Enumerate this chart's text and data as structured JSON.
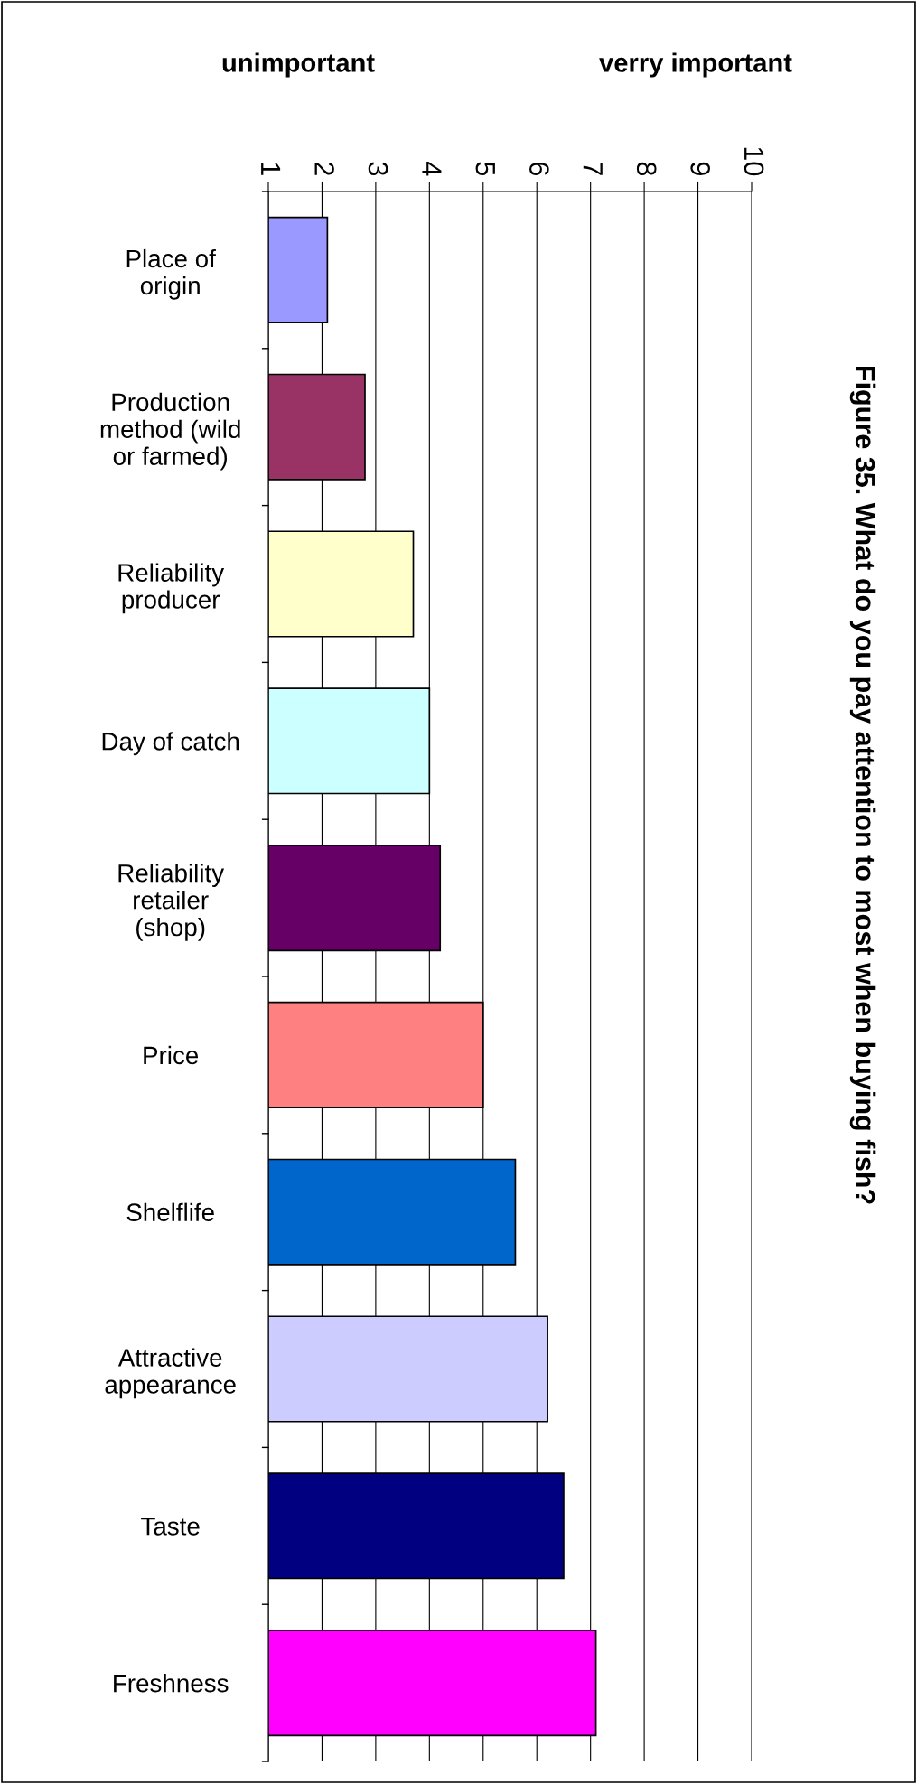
{
  "chart_data": {
    "type": "bar",
    "orientation": "horizontal",
    "title": "Figure 35. What do you pay attention to most when buying fish?",
    "annotations": [
      "unimportant",
      "verry important"
    ],
    "categories": [
      "Place of\norigin",
      "Production\nmethod (wild\nor farmed)",
      "Reliability\nproducer",
      "Day of catch",
      "Reliability\nretailer\n(shop)",
      "Price",
      "Shelflife",
      "Attractive\nappearance",
      "Taste",
      "Freshness"
    ],
    "values": [
      1.1,
      1.8,
      2.7,
      3.0,
      3.2,
      4.0,
      4.6,
      5.2,
      5.5,
      6.1
    ],
    "base": [
      1,
      1,
      1,
      1,
      1,
      1,
      1,
      1,
      1,
      1
    ],
    "colors": [
      "#9999ff",
      "#993366",
      "#ffffcc",
      "#ccffff",
      "#660066",
      "#ff8080",
      "#0066cc",
      "#ccccff",
      "#000080",
      "#ff00ff"
    ],
    "xlim": [
      1,
      10
    ],
    "xticks": [
      1,
      2,
      3,
      4,
      5,
      6,
      7,
      8,
      9,
      10
    ],
    "grid": "x"
  }
}
